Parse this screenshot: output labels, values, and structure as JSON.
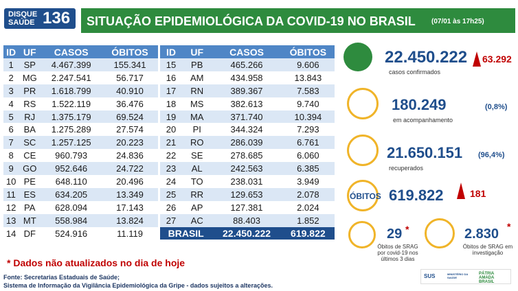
{
  "logo": {
    "line1": "DISQUE",
    "line2": "SAÚDE",
    "number": "136"
  },
  "header": {
    "title": "SITUAÇÃO EPIDEMIOLÓGICA DA COVID-19 NO BRASIL",
    "timestamp": "(07/01 às 17h25)"
  },
  "table_left": {
    "columns": [
      "ID",
      "UF",
      "CASOS",
      "ÓBITOS"
    ],
    "rows": [
      [
        "1",
        "SP",
        "4.467.399",
        "155.341"
      ],
      [
        "2",
        "MG",
        "2.247.541",
        "56.717"
      ],
      [
        "3",
        "PR",
        "1.618.799",
        "40.910"
      ],
      [
        "4",
        "RS",
        "1.522.119",
        "36.476"
      ],
      [
        "5",
        "RJ",
        "1.375.179",
        "69.524"
      ],
      [
        "6",
        "BA",
        "1.275.289",
        "27.574"
      ],
      [
        "7",
        "SC",
        "1.257.125",
        "20.223"
      ],
      [
        "8",
        "CE",
        "960.793",
        "24.836"
      ],
      [
        "9",
        "GO",
        "952.646",
        "24.722"
      ],
      [
        "10",
        "PE",
        "648.110",
        "20.496"
      ],
      [
        "11",
        "ES",
        "634.205",
        "13.349"
      ],
      [
        "12",
        "PA",
        "628.094",
        "17.143"
      ],
      [
        "13",
        "MT",
        "558.984",
        "13.824"
      ],
      [
        "14",
        "DF",
        "524.916",
        "11.119"
      ]
    ]
  },
  "table_right": {
    "columns": [
      "ID",
      "UF",
      "CASOS",
      "ÓBITOS"
    ],
    "rows": [
      [
        "15",
        "PB",
        "465.266",
        "9.606"
      ],
      [
        "16",
        "AM",
        "434.958",
        "13.843"
      ],
      [
        "17",
        "RN",
        "389.367",
        "7.583"
      ],
      [
        "18",
        "MS",
        "382.613",
        "9.740"
      ],
      [
        "19",
        "MA",
        "371.740",
        "10.394"
      ],
      [
        "20",
        "PI",
        "344.324",
        "7.293"
      ],
      [
        "21",
        "RO",
        "286.039",
        "6.761"
      ],
      [
        "22",
        "SE",
        "278.685",
        "6.060"
      ],
      [
        "23",
        "AL",
        "242.563",
        "6.385"
      ],
      [
        "24",
        "TO",
        "238.031",
        "3.949"
      ],
      [
        "25",
        "RR",
        "129.653",
        "2.078"
      ],
      [
        "26",
        "AP",
        "127.381",
        "2.024"
      ],
      [
        "27",
        "AC",
        "88.403",
        "1.852"
      ]
    ],
    "total": [
      "BRASIL",
      "22.450.222",
      "619.822"
    ]
  },
  "stats": {
    "confirmed": {
      "value": "22.450.222",
      "new": "63.292",
      "label": "casos confirmados"
    },
    "monitoring": {
      "value": "180.249",
      "percent": "(0,8%)",
      "label": "em acompanhamento"
    },
    "recovered": {
      "value": "21.650.151",
      "percent": "(96,4%)",
      "label": "recuperados"
    },
    "deaths": {
      "label": "ÓBITOS",
      "value": "619.822",
      "new": "181"
    },
    "srag_recent": {
      "value": "29",
      "mark": "*",
      "label": "Óbitos de SRAG por covid-19 nos últimos 3 dias"
    },
    "srag_investigation": {
      "value": "2.830",
      "mark": "*",
      "label": "Óbitos de SRAG em investigação"
    }
  },
  "note": "* Dados não atualizados no dia de hoje",
  "sources": [
    "Fonte: Secretarias Estaduais de Saúde;",
    "Sistema de Informação da Vigilância Epidemiológica da Gripe - dados sujeitos a alterações."
  ],
  "footer_logos": {
    "sus": "SUS",
    "ministry": "MINISTÉRIO DA SAÚDE",
    "gov": "PÁTRIA AMADA BRASIL"
  }
}
